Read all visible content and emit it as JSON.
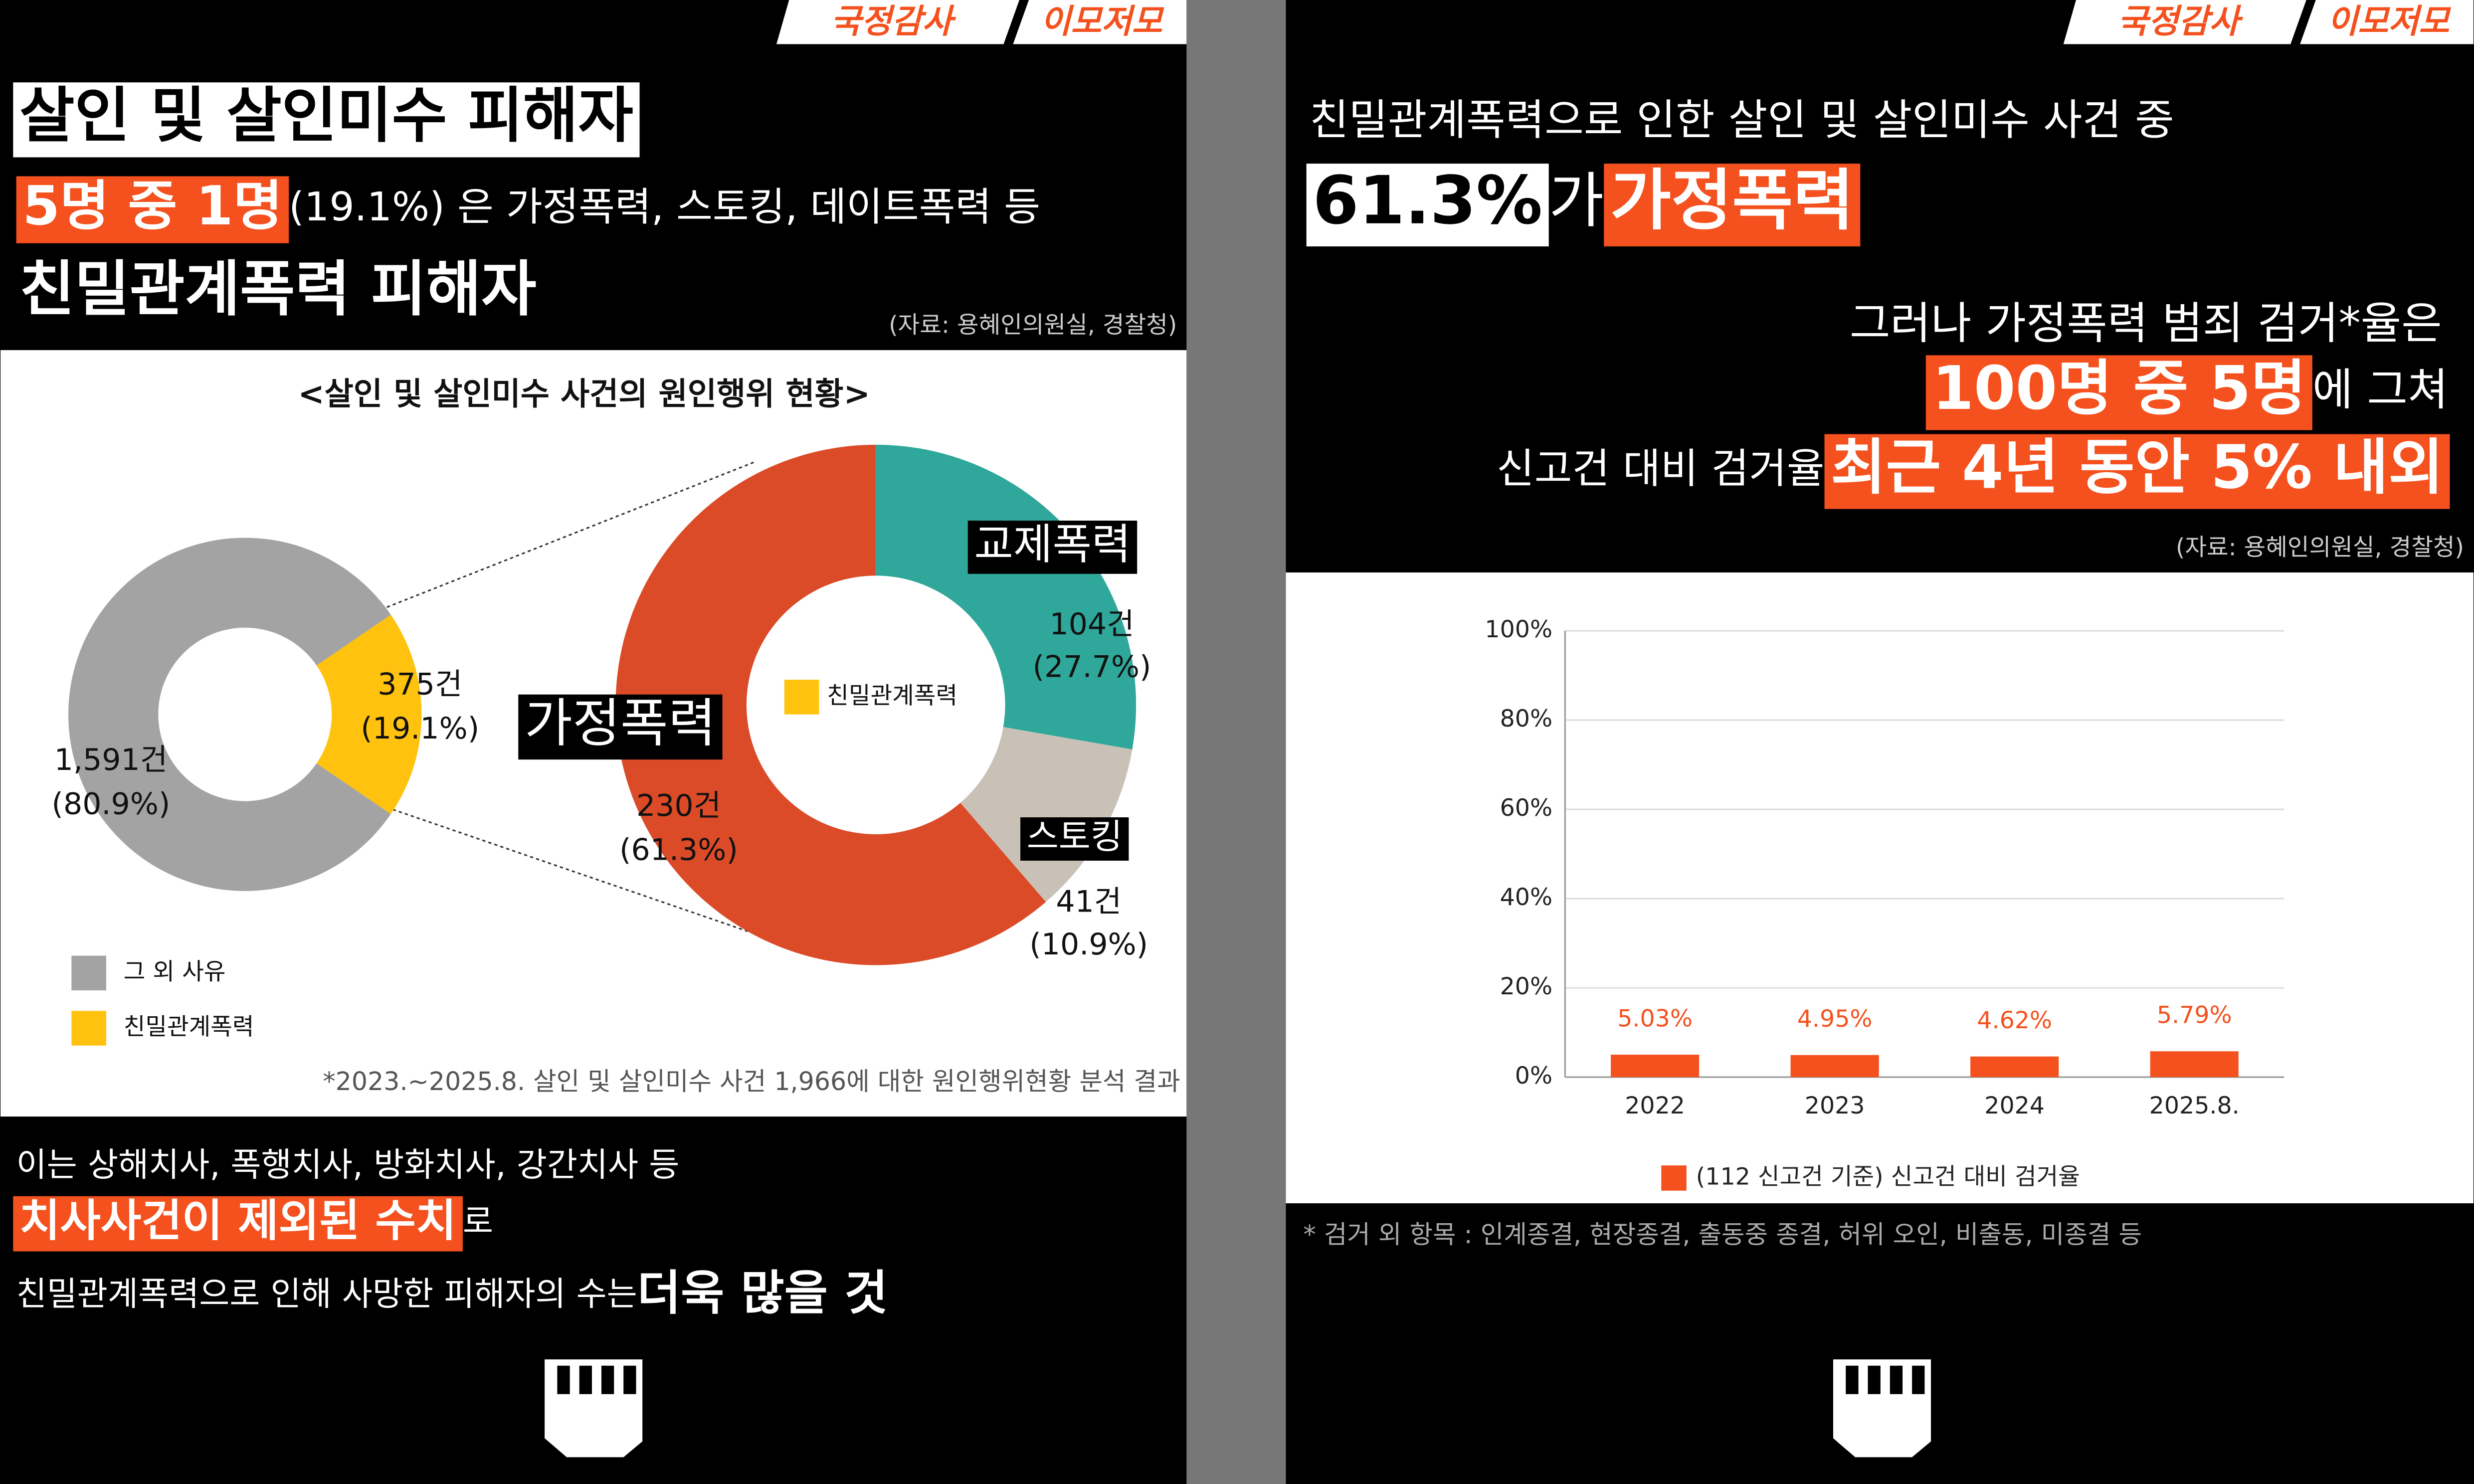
{
  "left": {
    "badge": [
      "국정감사",
      "이모저모"
    ],
    "headline": [
      [
        "살인 및 살인미수 피해자"
      ],
      [
        "5명 중 1명",
        "(19.1%) 은 가정폭력, 스토킹, 데이트폭력 등"
      ],
      [
        "친밀관계폭력 피해자"
      ]
    ],
    "source": "(자료: 용혜인의원실, 경찰청)",
    "footnote": "*2023.~2025.8. 살인 및 살인미수 사건 1,966에 대한 원인행위현황 분석 결과",
    "notes": [
      [
        "이는 상해치사, 폭행치사, 방화치사, 강간치사 등"
      ],
      [
        "치사사건이 제외된 수치",
        "로"
      ],
      [
        "친밀관계폭력으로 인해 사망한 피해자의 수는 ",
        "더욱 많을 것"
      ]
    ]
  },
  "right": {
    "badge": [
      "국정감사",
      "이모저모"
    ],
    "headline": [
      [
        "친밀관계폭력으로 인한 살인 및 살인미수 사건 중"
      ],
      [
        "61.3%",
        "가 ",
        "가정폭력"
      ],
      [
        "그러나 가정폭력 범죄 검거*율은"
      ],
      [
        "100명 중 5명",
        "에 그쳐"
      ],
      [
        "신고건 대비 검거율 ",
        "최근 4년 동안 5% 내외"
      ]
    ],
    "source": "(자료: 용혜인의원실, 경찰청)",
    "footnote": "* 검거 외 항목 : 인계종결, 현장종결, 출동중 종결, 허위 오인, 비출동, 미종결 등"
  },
  "chart_data": [
    {
      "type": "donut",
      "title": "<살인 및 살인미수 사건의 원인행위 현황>",
      "categories": [
        "그 외 사유",
        "친밀관계폭력"
      ],
      "values": [
        1591,
        375
      ],
      "value_labels": [
        "1,591건",
        "375건"
      ],
      "share_labels": [
        "(80.9%)",
        "(19.1%)"
      ],
      "colors": [
        "#a3a3a3",
        "#ffc20e"
      ],
      "legend": "bottom-left"
    },
    {
      "type": "donut",
      "categories": [
        "교제폭력",
        "스토킹",
        "가정폭력"
      ],
      "values": [
        104,
        41,
        230
      ],
      "value_labels": [
        "104건",
        "41건",
        "230건"
      ],
      "share_labels": [
        "(27.7%)",
        "(10.9%)",
        "(61.3%)"
      ],
      "colors": [
        "#2fa79a",
        "#c9c1b6",
        "#db4b28"
      ],
      "center_label": "친밀관계폭력",
      "center_color": "#ffc20e"
    },
    {
      "type": "bar",
      "categories": [
        "2022",
        "2023",
        "2024",
        "2025.8."
      ],
      "series": [
        {
          "name": "(112 신고건 기준) 신고건 대비 검거율",
          "color": "#f4511e",
          "values": [
            5.03,
            4.95,
            4.62,
            5.79
          ],
          "value_labels": [
            "5.03%",
            "4.95%",
            "4.62%",
            "5.79%"
          ]
        }
      ],
      "ylim": [
        0,
        100
      ],
      "yticks": [
        {
          "value": 0,
          "label": "0%"
        },
        {
          "value": 20,
          "label": "20%"
        },
        {
          "value": 40,
          "label": "40%"
        },
        {
          "value": 60,
          "label": "60%"
        },
        {
          "value": 80,
          "label": "80%"
        },
        {
          "value": 100,
          "label": "100%"
        }
      ],
      "grid": true,
      "legend": "bottom"
    }
  ]
}
